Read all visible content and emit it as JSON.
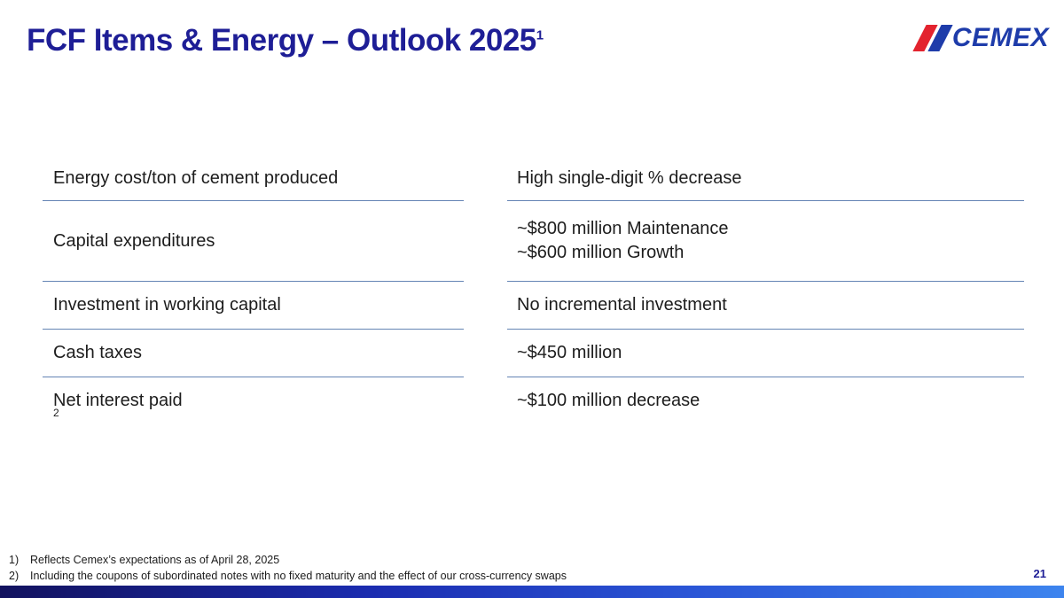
{
  "slide": {
    "title": "FCF Items & Energy – Outlook 2025",
    "title_superscript": "1",
    "page_number": "21"
  },
  "logo": {
    "text": "CEMEX"
  },
  "table": {
    "rows": [
      {
        "item": "Energy cost/ton of cement produced",
        "value_lines": [
          "High single-digit % decrease"
        ]
      },
      {
        "item": "Capital expenditures",
        "value_lines": [
          "~$800 million Maintenance",
          "~$600 million Growth"
        ]
      },
      {
        "item": "Investment in working capital",
        "value_lines": [
          "No incremental investment"
        ]
      },
      {
        "item": "Cash taxes",
        "value_lines": [
          "~$450 million"
        ]
      },
      {
        "item": "Net interest paid",
        "item_superscript": "2",
        "value_lines": [
          "~$100 million decrease"
        ]
      }
    ]
  },
  "footnotes": [
    {
      "marker": "1)",
      "text": "Reflects Cemex’s expectations as of April 28, 2025"
    },
    {
      "marker": "2)",
      "text": "Including the coupons of subordinated notes with no fixed maturity and the effect of our cross-currency swaps"
    }
  ],
  "colors": {
    "title_navy": "#1e1e96",
    "divider_blue": "#6484b4",
    "body_text": "#1d1d1d",
    "bar_gradient_start": "#12125e",
    "bar_gradient_end": "#3d84ee",
    "logo_red": "#e3232e",
    "logo_blue": "#1e3caa"
  }
}
